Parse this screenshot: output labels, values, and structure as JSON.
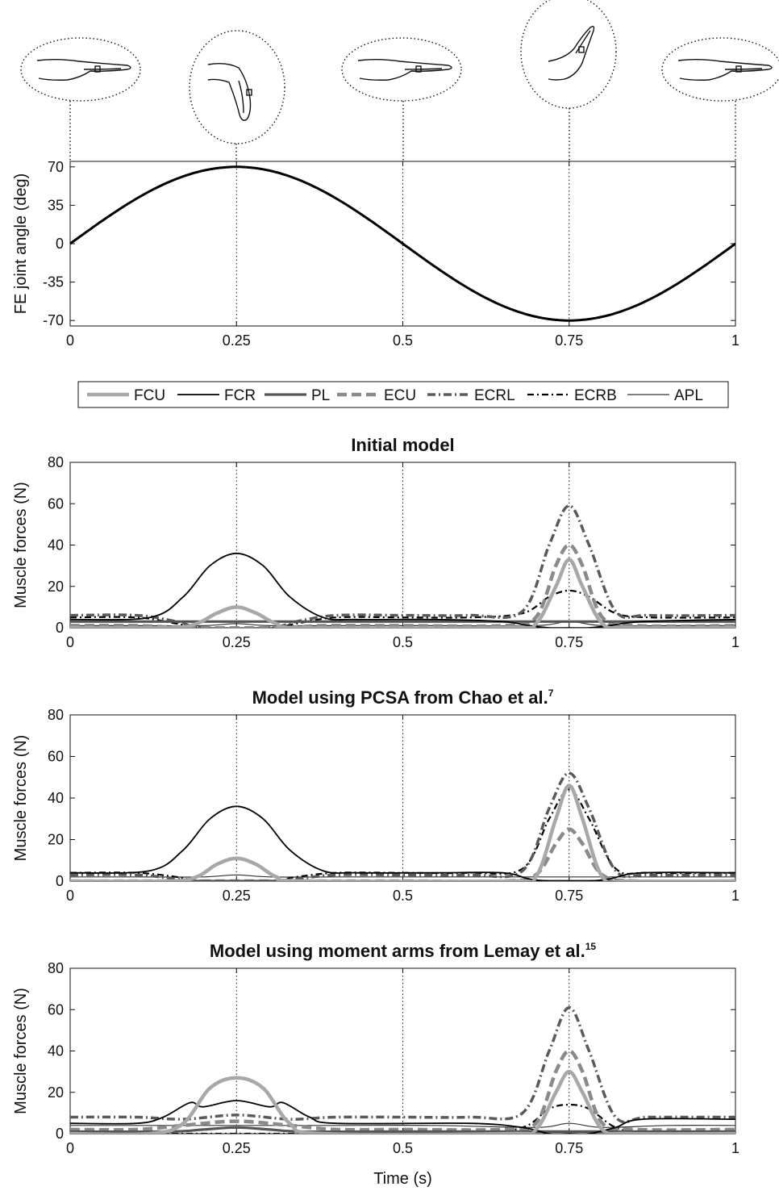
{
  "chart_data": [
    {
      "type": "line",
      "ylabel": "FE joint angle (deg)",
      "xlim": [
        0,
        1
      ],
      "ylim": [
        -75,
        75
      ],
      "xticks": [
        "0",
        "0.25",
        "0.5",
        "0.75",
        "1"
      ],
      "yticks": [
        "70",
        "35",
        "0",
        "-35",
        "-70"
      ],
      "series": [
        {
          "x": [
            0,
            0.0625,
            0.125,
            0.1875,
            0.25,
            0.3125,
            0.375,
            0.4375,
            0.5,
            0.5625,
            0.625,
            0.6875,
            0.75,
            0.8125,
            0.875,
            0.9375,
            1
          ],
          "values": [
            0,
            26.8,
            49.5,
            64.7,
            70,
            64.7,
            49.5,
            26.8,
            0,
            -26.8,
            -49.5,
            -64.7,
            -70,
            -64.7,
            -49.5,
            -26.8,
            0
          ]
        }
      ],
      "illustrations": [
        "hand-neutral",
        "hand-flexed",
        "hand-neutral",
        "hand-extended",
        "hand-neutral"
      ]
    },
    {
      "type": "line",
      "legend": [
        "FCU",
        "FCR",
        "PL",
        "ECU",
        "ECRL",
        "ECRB",
        "APL"
      ],
      "legend_placement": "top"
    },
    {
      "type": "line",
      "title": "Initial model",
      "ylabel": "Muscle forces (N)",
      "xlim": [
        0,
        1
      ],
      "ylim": [
        0,
        80
      ],
      "xticks": [
        "0",
        "0.25",
        "0.5",
        "0.75",
        "1"
      ],
      "yticks": [
        "80",
        "60",
        "40",
        "20",
        "0"
      ],
      "series": [
        {
          "name": "FCU",
          "x": [
            0,
            0.15,
            0.19,
            0.22,
            0.25,
            0.28,
            0.31,
            0.35,
            0.66,
            0.7,
            0.73,
            0.75,
            0.77,
            0.8,
            0.84,
            1
          ],
          "values": [
            0,
            0,
            2,
            7,
            10,
            7,
            2,
            0,
            0,
            2,
            20,
            33,
            20,
            2,
            0,
            0
          ]
        },
        {
          "name": "FCR",
          "x": [
            0,
            0.12,
            0.17,
            0.21,
            0.25,
            0.29,
            0.33,
            0.38,
            0.43,
            0.55,
            0.65,
            0.69,
            0.72,
            0.75,
            0.78,
            0.81,
            0.86,
            1
          ],
          "values": [
            4,
            5,
            15,
            30,
            36,
            30,
            15,
            5,
            4,
            4,
            3,
            1,
            0,
            0,
            0,
            1,
            3,
            4
          ]
        },
        {
          "name": "PL",
          "x": [
            0,
            0.1,
            0.2,
            0.25,
            0.3,
            0.4,
            0.55,
            0.7,
            0.75,
            0.8,
            0.9,
            1
          ],
          "values": [
            3,
            3,
            3,
            3,
            3,
            3,
            3,
            3,
            3,
            3,
            3,
            3
          ]
        },
        {
          "name": "ECU",
          "x": [
            0,
            0.1,
            0.18,
            0.32,
            0.38,
            0.5,
            0.65,
            0.7,
            0.73,
            0.75,
            0.77,
            0.8,
            0.85,
            1
          ],
          "values": [
            1,
            1,
            0,
            0,
            1,
            1,
            1,
            5,
            30,
            40,
            30,
            5,
            1,
            1
          ]
        },
        {
          "name": "ECRL",
          "x": [
            0,
            0.1,
            0.16,
            0.2,
            0.3,
            0.34,
            0.4,
            0.5,
            0.6,
            0.68,
            0.72,
            0.75,
            0.78,
            0.82,
            0.87,
            1
          ],
          "values": [
            6,
            6,
            3,
            0,
            0,
            3,
            6,
            6,
            6,
            8,
            40,
            59,
            40,
            8,
            6,
            6
          ]
        },
        {
          "name": "ECRB",
          "x": [
            0,
            0.1,
            0.16,
            0.2,
            0.3,
            0.34,
            0.4,
            0.5,
            0.6,
            0.68,
            0.72,
            0.75,
            0.78,
            0.82,
            0.87,
            1
          ],
          "values": [
            5,
            5,
            2,
            0,
            0,
            2,
            5,
            5,
            5,
            7,
            15,
            18,
            15,
            7,
            5,
            5
          ]
        },
        {
          "name": "APL",
          "x": [
            0,
            0.1,
            0.2,
            0.25,
            0.3,
            0.4,
            0.55,
            0.7,
            0.75,
            0.8,
            0.9,
            1
          ],
          "values": [
            1,
            1,
            1,
            2,
            1,
            1,
            1,
            1,
            3,
            1,
            1,
            1
          ]
        }
      ]
    },
    {
      "type": "line",
      "title": "Model using PCSA from Chao et al.",
      "title_superscript": "7",
      "ylabel": "Muscle forces (N)",
      "xlim": [
        0,
        1
      ],
      "ylim": [
        0,
        80
      ],
      "xticks": [
        "0",
        "0.25",
        "0.5",
        "0.75",
        "1"
      ],
      "yticks": [
        "80",
        "60",
        "40",
        "20",
        "0"
      ],
      "series": [
        {
          "name": "FCU",
          "x": [
            0,
            0.15,
            0.19,
            0.22,
            0.25,
            0.28,
            0.31,
            0.35,
            0.66,
            0.7,
            0.73,
            0.75,
            0.77,
            0.8,
            0.84,
            1
          ],
          "values": [
            0,
            0,
            2,
            8,
            11,
            8,
            2,
            0,
            0,
            2,
            30,
            46,
            30,
            2,
            0,
            0
          ]
        },
        {
          "name": "FCR",
          "x": [
            0,
            0.12,
            0.17,
            0.21,
            0.25,
            0.29,
            0.33,
            0.38,
            0.43,
            0.55,
            0.65,
            0.69,
            0.72,
            0.75,
            0.78,
            0.81,
            0.86,
            1
          ],
          "values": [
            4,
            5,
            15,
            30,
            36,
            30,
            15,
            5,
            4,
            4,
            4,
            1,
            0,
            0,
            0,
            1,
            4,
            4
          ]
        },
        {
          "name": "PL",
          "x": [
            0,
            0.2,
            0.25,
            0.3,
            0.5,
            0.75,
            1
          ],
          "values": [
            0,
            0,
            0,
            0,
            0,
            0,
            0
          ]
        },
        {
          "name": "ECU",
          "x": [
            0,
            0.1,
            0.18,
            0.32,
            0.38,
            0.5,
            0.65,
            0.7,
            0.73,
            0.75,
            0.77,
            0.8,
            0.85,
            1
          ],
          "values": [
            0,
            0,
            0,
            0,
            0,
            0,
            0,
            3,
            18,
            25,
            18,
            3,
            0,
            0
          ]
        },
        {
          "name": "ECRL",
          "x": [
            0,
            0.1,
            0.16,
            0.2,
            0.3,
            0.34,
            0.4,
            0.5,
            0.6,
            0.68,
            0.72,
            0.75,
            0.78,
            0.82,
            0.87,
            1
          ],
          "values": [
            3,
            3,
            1,
            0,
            0,
            1,
            3,
            3,
            3,
            5,
            35,
            52,
            35,
            5,
            3,
            3
          ]
        },
        {
          "name": "ECRB",
          "x": [
            0,
            0.1,
            0.16,
            0.2,
            0.3,
            0.34,
            0.4,
            0.5,
            0.6,
            0.68,
            0.72,
            0.75,
            0.78,
            0.82,
            0.87,
            1
          ],
          "values": [
            4,
            4,
            2,
            0,
            0,
            2,
            4,
            4,
            4,
            6,
            30,
            44,
            30,
            6,
            4,
            4
          ]
        },
        {
          "name": "APL",
          "x": [
            0,
            0.1,
            0.2,
            0.25,
            0.3,
            0.4,
            0.55,
            0.7,
            0.75,
            0.8,
            0.9,
            1
          ],
          "values": [
            2,
            2,
            2,
            3,
            2,
            2,
            2,
            2,
            2,
            2,
            2,
            2
          ]
        }
      ]
    },
    {
      "type": "line",
      "title": "Model using moment arms from Lemay et al.",
      "title_superscript": "15",
      "ylabel": "Muscle forces (N)",
      "xlabel": "Time (s)",
      "xlim": [
        0,
        1
      ],
      "ylim": [
        0,
        80
      ],
      "xticks": [
        "0",
        "0.25",
        "0.5",
        "0.75",
        "1"
      ],
      "yticks": [
        "80",
        "60",
        "40",
        "20",
        "0"
      ],
      "series": [
        {
          "name": "FCU",
          "x": [
            0,
            0.12,
            0.17,
            0.21,
            0.25,
            0.29,
            0.33,
            0.38,
            0.66,
            0.7,
            0.73,
            0.75,
            0.77,
            0.8,
            0.84,
            1
          ],
          "values": [
            0,
            0,
            5,
            22,
            27,
            22,
            5,
            0,
            0,
            2,
            20,
            30,
            20,
            2,
            0,
            0
          ]
        },
        {
          "name": "FCR",
          "x": [
            0,
            0.1,
            0.14,
            0.18,
            0.2,
            0.25,
            0.3,
            0.32,
            0.36,
            0.4,
            0.6,
            0.68,
            0.72,
            0.75,
            0.78,
            0.82,
            0.86,
            1
          ],
          "values": [
            5,
            5,
            8,
            15,
            13,
            16,
            13,
            15,
            8,
            5,
            5,
            3,
            0,
            0,
            0,
            3,
            7,
            7
          ]
        },
        {
          "name": "PL",
          "x": [
            0,
            0.15,
            0.2,
            0.25,
            0.3,
            0.35,
            0.5,
            0.75,
            1
          ],
          "values": [
            1,
            1,
            2,
            3,
            2,
            1,
            1,
            1,
            1
          ]
        },
        {
          "name": "ECU",
          "x": [
            0,
            0.1,
            0.17,
            0.25,
            0.33,
            0.4,
            0.5,
            0.65,
            0.7,
            0.73,
            0.75,
            0.77,
            0.8,
            0.85,
            1
          ],
          "values": [
            2,
            2,
            4,
            6,
            4,
            2,
            2,
            2,
            5,
            30,
            40,
            30,
            5,
            2,
            2
          ]
        },
        {
          "name": "ECRL",
          "x": [
            0,
            0.1,
            0.17,
            0.25,
            0.33,
            0.4,
            0.5,
            0.6,
            0.68,
            0.72,
            0.75,
            0.78,
            0.82,
            0.87,
            1
          ],
          "values": [
            8,
            8,
            7,
            9,
            7,
            8,
            8,
            8,
            10,
            40,
            61,
            40,
            8,
            8,
            8
          ]
        },
        {
          "name": "ECRB",
          "x": [
            0,
            0.2,
            0.3,
            0.4,
            0.6,
            0.68,
            0.72,
            0.75,
            0.78,
            0.82,
            0.87,
            1
          ],
          "values": [
            0,
            0,
            0,
            0,
            0,
            3,
            12,
            14,
            12,
            3,
            0,
            0
          ]
        },
        {
          "name": "APL",
          "x": [
            0,
            0.1,
            0.2,
            0.25,
            0.3,
            0.4,
            0.55,
            0.7,
            0.75,
            0.8,
            0.9,
            1
          ],
          "values": [
            4,
            4,
            4,
            4,
            4,
            4,
            4,
            3,
            5,
            3,
            4,
            4
          ]
        }
      ]
    }
  ]
}
